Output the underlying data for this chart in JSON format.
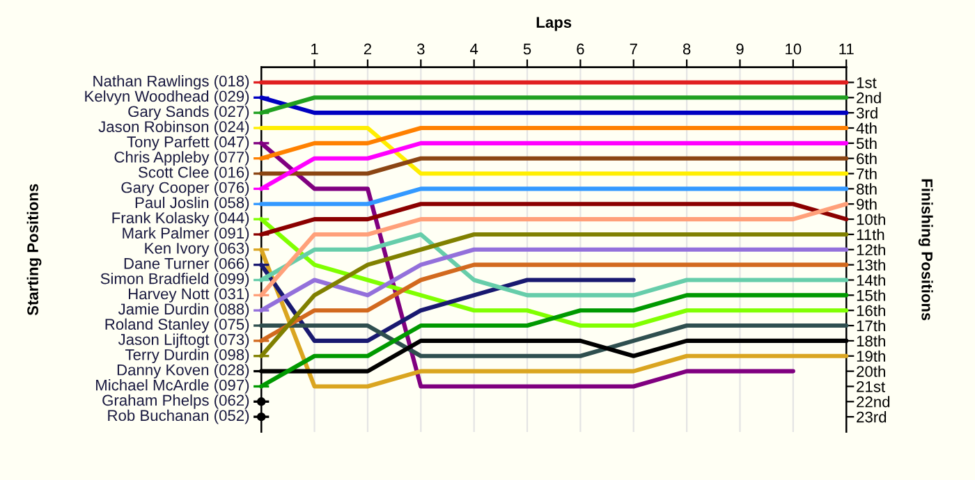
{
  "chart_data": {
    "type": "line",
    "xlabel": "Laps",
    "y2label": "Finishing Positions",
    "x": [
      0,
      1,
      2,
      3,
      4,
      5,
      6,
      7,
      8,
      9,
      10,
      11
    ],
    "xlim": [
      0,
      11
    ],
    "xticks": [
      1,
      2,
      3,
      4,
      5,
      6,
      7,
      8,
      9,
      10,
      11
    ],
    "annotations": [
      "Starting Positions"
    ],
    "y2lim": [
      24,
      0
    ],
    "y2ticks": [
      {
        "value": 1,
        "label": "1st"
      },
      {
        "value": 2,
        "label": "2nd"
      },
      {
        "value": 3,
        "label": "3rd"
      },
      {
        "value": 4,
        "label": "4th"
      },
      {
        "value": 5,
        "label": "5th"
      },
      {
        "value": 6,
        "label": "6th"
      },
      {
        "value": 7,
        "label": "7th"
      },
      {
        "value": 8,
        "label": "8th"
      },
      {
        "value": 9,
        "label": "9th"
      },
      {
        "value": 10,
        "label": "10th"
      },
      {
        "value": 11,
        "label": "11th"
      },
      {
        "value": 12,
        "label": "12th"
      },
      {
        "value": 13,
        "label": "13th"
      },
      {
        "value": 14,
        "label": "14th"
      },
      {
        "value": 15,
        "label": "15th"
      },
      {
        "value": 16,
        "label": "16th"
      },
      {
        "value": 17,
        "label": "17th"
      },
      {
        "value": 18,
        "label": "18th"
      },
      {
        "value": 19,
        "label": "19th"
      },
      {
        "value": 20,
        "label": "20th"
      },
      {
        "value": 21,
        "label": "21st"
      },
      {
        "value": 22,
        "label": "22nd"
      },
      {
        "value": 23,
        "label": "23rd"
      }
    ],
    "grid": "x",
    "legend": "left",
    "marker": "none",
    "line_style": "solid",
    "series": [
      {
        "name": "Nathan Rawlings (018)",
        "axis": "y2",
        "color": "#e02020",
        "values": [
          1,
          1,
          1,
          1,
          1,
          1,
          1,
          1,
          1,
          1,
          1,
          1
        ]
      },
      {
        "name": "Kelvyn Woodhead (029)",
        "axis": "y2",
        "color": "#0000c0",
        "values": [
          2,
          3,
          3,
          3,
          3,
          3,
          3,
          3,
          3,
          3,
          3,
          3
        ]
      },
      {
        "name": "Gary Sands (027)",
        "axis": "y2",
        "color": "#20a020",
        "values": [
          3,
          2,
          2,
          2,
          2,
          2,
          2,
          2,
          2,
          2,
          2,
          2
        ]
      },
      {
        "name": "Jason Robinson (024)",
        "axis": "y2",
        "color": "#ffee00",
        "values": [
          4,
          4,
          4,
          7,
          7,
          7,
          7,
          7,
          7,
          7,
          7,
          7
        ]
      },
      {
        "name": "Tony Parfett (047)",
        "axis": "y2",
        "color": "#800080",
        "values": [
          5,
          8,
          8,
          21,
          21,
          21,
          21,
          21,
          20,
          20,
          20,
          null
        ]
      },
      {
        "name": "Chris Appleby (077)",
        "axis": "y2",
        "color": "#ff8000",
        "values": [
          6,
          5,
          5,
          4,
          4,
          4,
          4,
          4,
          4,
          4,
          4,
          4
        ]
      },
      {
        "name": "Scott Clee (016)",
        "axis": "y2",
        "color": "#8b4513",
        "values": [
          7,
          7,
          7,
          6,
          6,
          6,
          6,
          6,
          6,
          6,
          6,
          6
        ]
      },
      {
        "name": "Gary Cooper (076)",
        "axis": "y2",
        "color": "#ff00ff",
        "values": [
          8,
          6,
          6,
          5,
          5,
          5,
          5,
          5,
          5,
          5,
          5,
          5
        ]
      },
      {
        "name": "Paul Joslin (058)",
        "axis": "y2",
        "color": "#3399ff",
        "values": [
          9,
          9,
          9,
          8,
          8,
          8,
          8,
          8,
          8,
          8,
          8,
          8
        ]
      },
      {
        "name": "Frank Kolasky (044)",
        "axis": "y2",
        "color": "#80ff00",
        "values": [
          10,
          13,
          14,
          15,
          16,
          16,
          17,
          17,
          16,
          16,
          16,
          16
        ]
      },
      {
        "name": "Mark Palmer (091)",
        "axis": "y2",
        "color": "#8b0000",
        "values": [
          11,
          10,
          10,
          9,
          9,
          9,
          9,
          9,
          9,
          9,
          9,
          10
        ]
      },
      {
        "name": "Ken Ivory (063)",
        "axis": "y2",
        "color": "#daa520",
        "values": [
          12,
          21,
          21,
          20,
          20,
          20,
          20,
          20,
          19,
          19,
          19,
          19
        ]
      },
      {
        "name": "Dane Turner (066)",
        "axis": "y2",
        "color": "#191970",
        "values": [
          13,
          18,
          18,
          16,
          15,
          14,
          14,
          14,
          null,
          null,
          null,
          null
        ]
      },
      {
        "name": "Simon Bradfield (099)",
        "axis": "y2",
        "color": "#66cdaa",
        "values": [
          14,
          12,
          12,
          11,
          14,
          15,
          15,
          15,
          14,
          14,
          14,
          14
        ]
      },
      {
        "name": "Harvey Nott (031)",
        "axis": "y2",
        "color": "#ffa07a",
        "values": [
          15,
          11,
          11,
          10,
          10,
          10,
          10,
          10,
          10,
          10,
          10,
          9
        ]
      },
      {
        "name": "Jamie Durdin (088)",
        "axis": "y2",
        "color": "#9370db",
        "values": [
          16,
          14,
          15,
          13,
          12,
          12,
          12,
          12,
          12,
          12,
          12,
          12
        ]
      },
      {
        "name": "Roland Stanley (075)",
        "axis": "y2",
        "color": "#2f4f4f",
        "values": [
          17,
          17,
          17,
          19,
          19,
          19,
          19,
          18,
          17,
          17,
          17,
          17
        ]
      },
      {
        "name": "Jason Lijftogt (073)",
        "axis": "y2",
        "color": "#d2691e",
        "values": [
          18,
          16,
          16,
          14,
          13,
          13,
          13,
          13,
          13,
          13,
          13,
          13
        ]
      },
      {
        "name": "Terry Durdin (098)",
        "axis": "y2",
        "color": "#808000",
        "values": [
          19,
          15,
          13,
          12,
          11,
          11,
          11,
          11,
          11,
          11,
          11,
          11
        ]
      },
      {
        "name": "Danny Koven (028)",
        "axis": "y2",
        "color": "#000000",
        "values": [
          20,
          20,
          20,
          18,
          18,
          18,
          18,
          19,
          18,
          18,
          18,
          18
        ]
      },
      {
        "name": "Michael McArdle (097)",
        "axis": "y2",
        "color": "#009900",
        "values": [
          21,
          19,
          19,
          17,
          17,
          17,
          16,
          16,
          15,
          15,
          15,
          15
        ]
      },
      {
        "name": "Graham Phelps (062)",
        "axis": "y2",
        "marker": "circle",
        "color": "#000000",
        "values": [
          22,
          null,
          null,
          null,
          null,
          null,
          null,
          null,
          null,
          null,
          null,
          null
        ]
      },
      {
        "name": "Rob Buchanan (052)",
        "axis": "y2",
        "marker": "circle",
        "color": "#000000",
        "values": [
          23,
          null,
          null,
          null,
          null,
          null,
          null,
          null,
          null,
          null,
          null,
          null
        ]
      }
    ]
  }
}
